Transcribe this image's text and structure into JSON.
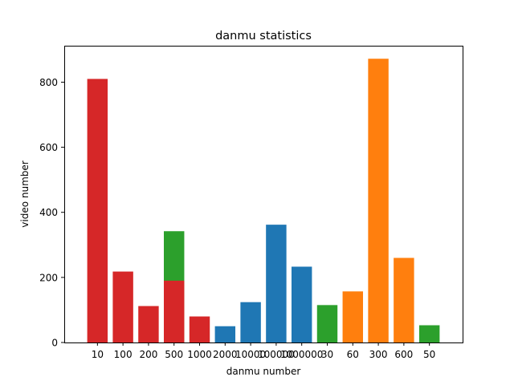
{
  "chart_data": {
    "type": "bar",
    "title": "danmu statistics",
    "xlabel": "danmu number",
    "ylabel": "video number",
    "ylim": [
      0,
      912
    ],
    "yticks": [
      0,
      200,
      400,
      600,
      800
    ],
    "grid": false,
    "categories": [
      "10",
      "100",
      "200",
      "500",
      "1000",
      "2000",
      "10000",
      "100000",
      "1000000",
      "30",
      "60",
      "300",
      "600",
      "50"
    ],
    "bars": [
      {
        "category": "10",
        "value": 810,
        "color": "#d62728"
      },
      {
        "category": "100",
        "value": 218,
        "color": "#d62728"
      },
      {
        "category": "200",
        "value": 112,
        "color": "#d62728"
      },
      {
        "category": "500",
        "value": 342,
        "color": "#2ca02c"
      },
      {
        "category": "500",
        "value": 190,
        "color": "#d62728"
      },
      {
        "category": "1000",
        "value": 80,
        "color": "#d62728"
      },
      {
        "category": "2000",
        "value": 50,
        "color": "#1f77b4"
      },
      {
        "category": "10000",
        "value": 124,
        "color": "#1f77b4"
      },
      {
        "category": "100000",
        "value": 362,
        "color": "#1f77b4"
      },
      {
        "category": "1000000",
        "value": 233,
        "color": "#1f77b4"
      },
      {
        "category": "30",
        "value": 115,
        "color": "#2ca02c"
      },
      {
        "category": "60",
        "value": 157,
        "color": "#ff7f0e"
      },
      {
        "category": "300",
        "value": 872,
        "color": "#ff7f0e"
      },
      {
        "category": "600",
        "value": 260,
        "color": "#ff7f0e"
      },
      {
        "category": "50",
        "value": 53,
        "color": "#2ca02c"
      }
    ]
  }
}
